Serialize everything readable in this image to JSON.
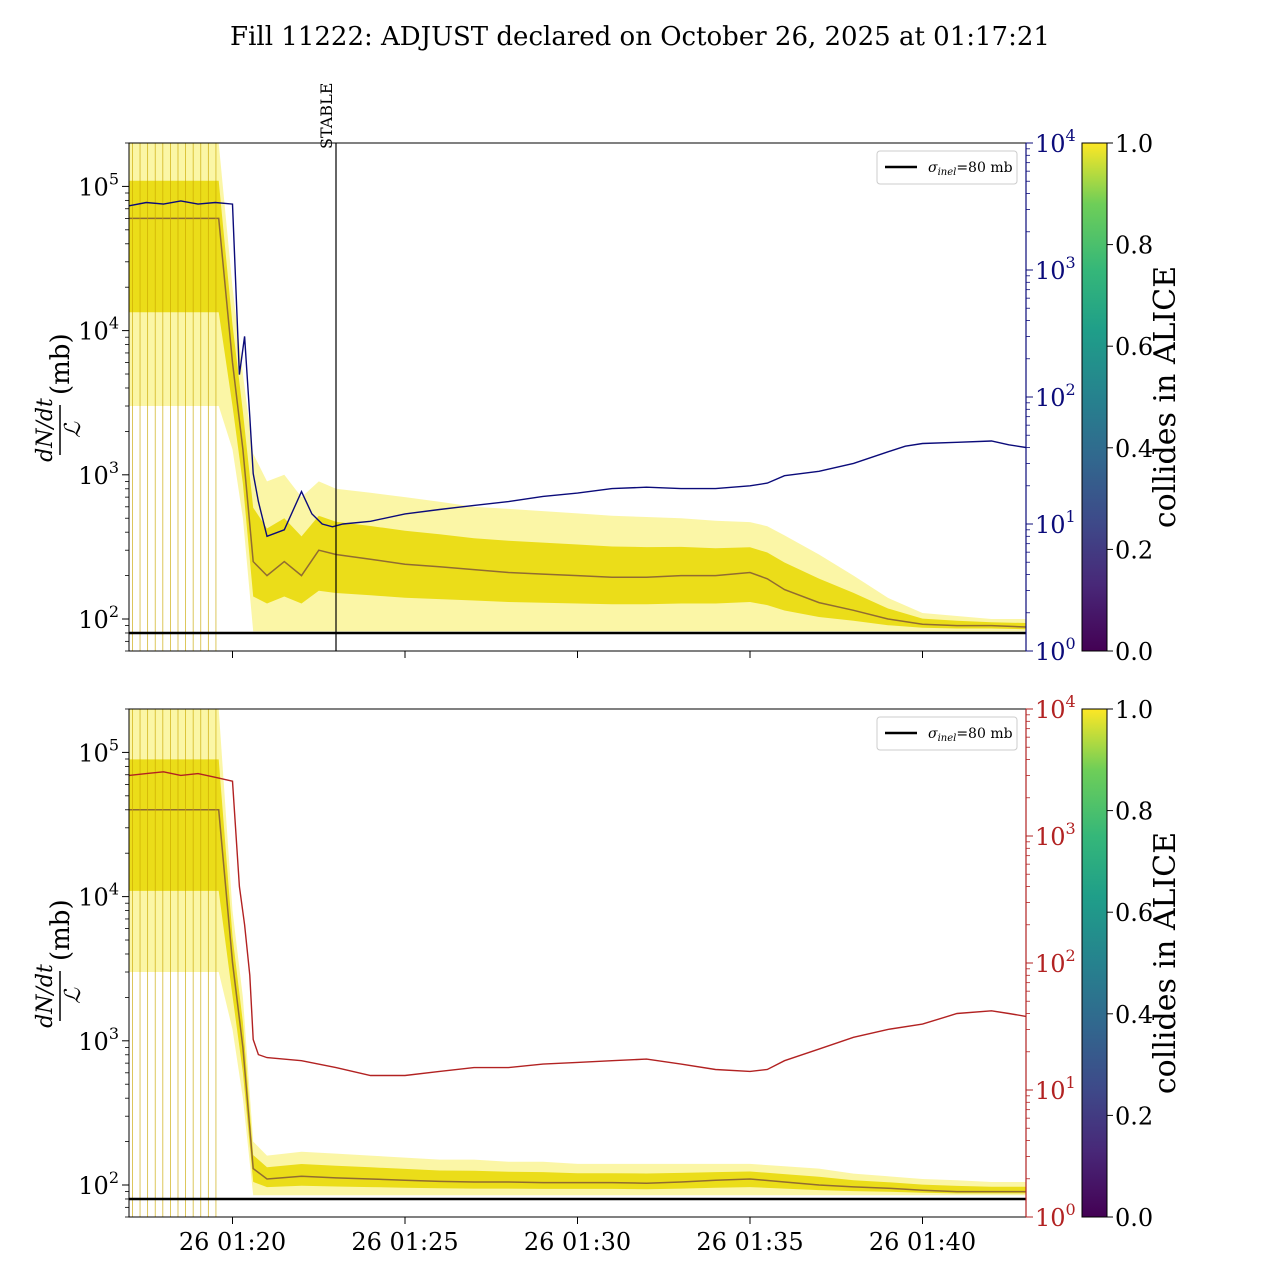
{
  "title": "Fill 11222: ADJUST declared on October 26, 2025 at 01:17:21",
  "colors": {
    "top_overlay": "#0b0b7a",
    "bottom_overlay": "#b22222",
    "threshold": "#000000",
    "stable_line": "#000000"
  },
  "chart_data": [
    {
      "type": "line",
      "panel": "top",
      "ylabel_numerator": "dN/dt",
      "ylabel_denominator": "ℒ",
      "ylabel_unit": "(mb)",
      "ylog": true,
      "ylim": [
        60,
        200000
      ],
      "left_yticks": [
        {
          "value": 100,
          "mant": "10",
          "exp": "2"
        },
        {
          "value": 1000,
          "mant": "10",
          "exp": "3"
        },
        {
          "value": 10000,
          "mant": "10",
          "exp": "4"
        },
        {
          "value": 100000,
          "mant": "10",
          "exp": "5"
        }
      ],
      "right_ylim": [
        1,
        10000
      ],
      "right_yticks": [
        {
          "value": 1,
          "mant": "10",
          "exp": "0"
        },
        {
          "value": 10,
          "mant": "10",
          "exp": "1"
        },
        {
          "value": 100,
          "mant": "10",
          "exp": "2"
        },
        {
          "value": 1000,
          "mant": "10",
          "exp": "3"
        },
        {
          "value": 10000,
          "mant": "10",
          "exp": "4"
        }
      ],
      "xlim_minutes": [
        17.0,
        43.0
      ],
      "threshold_value": 80,
      "legend": {
        "symbol": "σ",
        "subscript": "inel",
        "rest": "=80 mb"
      },
      "annotation": {
        "label": "STABLE",
        "x_minute": 23.0
      },
      "overlay_series": {
        "x_minutes": [
          17.0,
          17.5,
          18.0,
          18.5,
          19.0,
          19.5,
          20.0,
          20.2,
          20.35,
          20.5,
          20.6,
          20.75,
          21.0,
          21.5,
          22.0,
          22.3,
          22.6,
          22.9,
          23.2,
          24.0,
          25.0,
          26.0,
          27.0,
          28.0,
          29.0,
          30.0,
          31.0,
          32.0,
          33.0,
          34.0,
          35.0,
          35.5,
          36.0,
          37.0,
          38.0,
          39.0,
          39.5,
          40.0,
          41.0,
          42.0,
          42.5,
          43.0
        ],
        "values": [
          3200,
          3400,
          3300,
          3500,
          3300,
          3400,
          3300,
          150,
          300,
          70,
          25,
          15,
          8,
          9,
          18,
          12,
          10,
          9.5,
          10,
          10.5,
          12,
          13,
          14,
          15,
          16.5,
          17.5,
          19,
          19.5,
          19,
          19,
          20,
          21,
          24,
          26,
          30,
          37,
          41,
          43,
          44,
          45,
          42,
          40
        ]
      },
      "bunch_envelope": {
        "x_minutes": [
          17.0,
          18.0,
          19.0,
          19.6,
          20.0,
          20.3,
          20.6,
          21.0,
          21.5,
          22.0,
          22.5,
          23.0,
          24.0,
          25.0,
          26.0,
          27.0,
          28.0,
          29.0,
          30.0,
          31.0,
          32.0,
          33.0,
          34.0,
          35.0,
          35.5,
          36.0,
          37.0,
          38.0,
          39.0,
          40.0,
          41.0,
          42.0,
          43.0
        ],
        "upper": [
          200000,
          200000,
          200000,
          200000,
          20000,
          5000,
          1400,
          900,
          1000,
          700,
          900,
          800,
          750,
          700,
          650,
          600,
          580,
          560,
          540,
          520,
          510,
          500,
          480,
          470,
          440,
          380,
          280,
          200,
          140,
          110,
          105,
          100,
          100
        ],
        "center": [
          60000,
          60000,
          60000,
          60000,
          6000,
          1500,
          250,
          200,
          250,
          200,
          300,
          280,
          260,
          240,
          230,
          220,
          210,
          205,
          200,
          195,
          195,
          200,
          200,
          210,
          190,
          160,
          130,
          115,
          100,
          92,
          90,
          90,
          88
        ],
        "lower": [
          3000,
          3000,
          3000,
          3000,
          1500,
          500,
          82,
          82,
          82,
          82,
          82,
          82,
          82,
          82,
          82,
          82,
          82,
          82,
          82,
          82,
          82,
          82,
          82,
          82,
          82,
          82,
          82,
          82,
          82,
          82,
          82,
          82,
          82
        ]
      }
    },
    {
      "type": "line",
      "panel": "bottom",
      "ylabel_numerator": "dN/dt",
      "ylabel_denominator": "ℒ",
      "ylabel_unit": "(mb)",
      "ylog": true,
      "ylim": [
        60,
        200000
      ],
      "left_yticks": [
        {
          "value": 100,
          "mant": "10",
          "exp": "2"
        },
        {
          "value": 1000,
          "mant": "10",
          "exp": "3"
        },
        {
          "value": 10000,
          "mant": "10",
          "exp": "4"
        },
        {
          "value": 100000,
          "mant": "10",
          "exp": "5"
        }
      ],
      "right_ylim": [
        1,
        10000
      ],
      "right_yticks": [
        {
          "value": 1,
          "mant": "10",
          "exp": "0"
        },
        {
          "value": 10,
          "mant": "10",
          "exp": "1"
        },
        {
          "value": 100,
          "mant": "10",
          "exp": "2"
        },
        {
          "value": 1000,
          "mant": "10",
          "exp": "3"
        },
        {
          "value": 10000,
          "mant": "10",
          "exp": "4"
        }
      ],
      "xlim_minutes": [
        17.0,
        43.0
      ],
      "xticks": [
        {
          "minute": 20,
          "label": "26 01:20"
        },
        {
          "minute": 25,
          "label": "26 01:25"
        },
        {
          "minute": 30,
          "label": "26 01:30"
        },
        {
          "minute": 35,
          "label": "26 01:35"
        },
        {
          "minute": 40,
          "label": "26 01:40"
        }
      ],
      "threshold_value": 80,
      "legend": {
        "symbol": "σ",
        "subscript": "inel",
        "rest": "=80 mb"
      },
      "overlay_series": {
        "x_minutes": [
          17.0,
          17.5,
          18.0,
          18.5,
          19.0,
          19.5,
          20.0,
          20.2,
          20.35,
          20.5,
          20.6,
          20.75,
          21.0,
          22.0,
          23.0,
          24.0,
          25.0,
          26.0,
          27.0,
          28.0,
          29.0,
          30.0,
          31.0,
          32.0,
          33.0,
          34.0,
          35.0,
          35.5,
          36.0,
          37.0,
          38.0,
          39.0,
          40.0,
          41.0,
          42.0,
          42.5,
          43.0
        ],
        "values": [
          3000,
          3100,
          3200,
          3000,
          3100,
          2900,
          2700,
          400,
          200,
          80,
          25,
          19,
          18,
          17,
          15,
          13,
          13,
          14,
          15,
          15,
          16,
          16.5,
          17,
          17.5,
          16,
          14.5,
          14,
          14.5,
          17,
          21,
          26,
          30,
          33,
          40,
          42,
          40,
          38
        ]
      },
      "bunch_envelope": {
        "x_minutes": [
          17.0,
          18.0,
          19.0,
          19.6,
          20.0,
          20.3,
          20.6,
          21.0,
          22.0,
          23.0,
          24.0,
          25.0,
          26.0,
          27.0,
          28.0,
          29.0,
          30.0,
          31.0,
          32.0,
          33.0,
          34.0,
          35.0,
          36.0,
          37.0,
          38.0,
          39.0,
          40.0,
          41.0,
          42.0,
          43.0
        ],
        "upper": [
          200000,
          200000,
          200000,
          200000,
          8000,
          2000,
          200,
          160,
          170,
          165,
          160,
          155,
          150,
          150,
          145,
          145,
          140,
          140,
          140,
          140,
          140,
          140,
          135,
          130,
          120,
          115,
          110,
          108,
          105,
          105
        ],
        "center": [
          40000,
          40000,
          40000,
          40000,
          3500,
          900,
          130,
          110,
          115,
          112,
          110,
          108,
          106,
          105,
          105,
          104,
          104,
          104,
          103,
          105,
          108,
          110,
          105,
          100,
          97,
          95,
          92,
          90,
          90,
          90
        ],
        "lower": [
          3000,
          3000,
          3000,
          3000,
          1200,
          400,
          85,
          85,
          85,
          85,
          85,
          85,
          85,
          85,
          85,
          85,
          85,
          85,
          85,
          85,
          85,
          85,
          85,
          85,
          85,
          85,
          85,
          85,
          85,
          85
        ]
      }
    }
  ],
  "colorbar": {
    "label": "collides in ALICE",
    "range": [
      0.0,
      1.0
    ],
    "ticks": [
      "0.0",
      "0.2",
      "0.4",
      "0.6",
      "0.8",
      "1.0"
    ],
    "colormap": "viridis"
  }
}
